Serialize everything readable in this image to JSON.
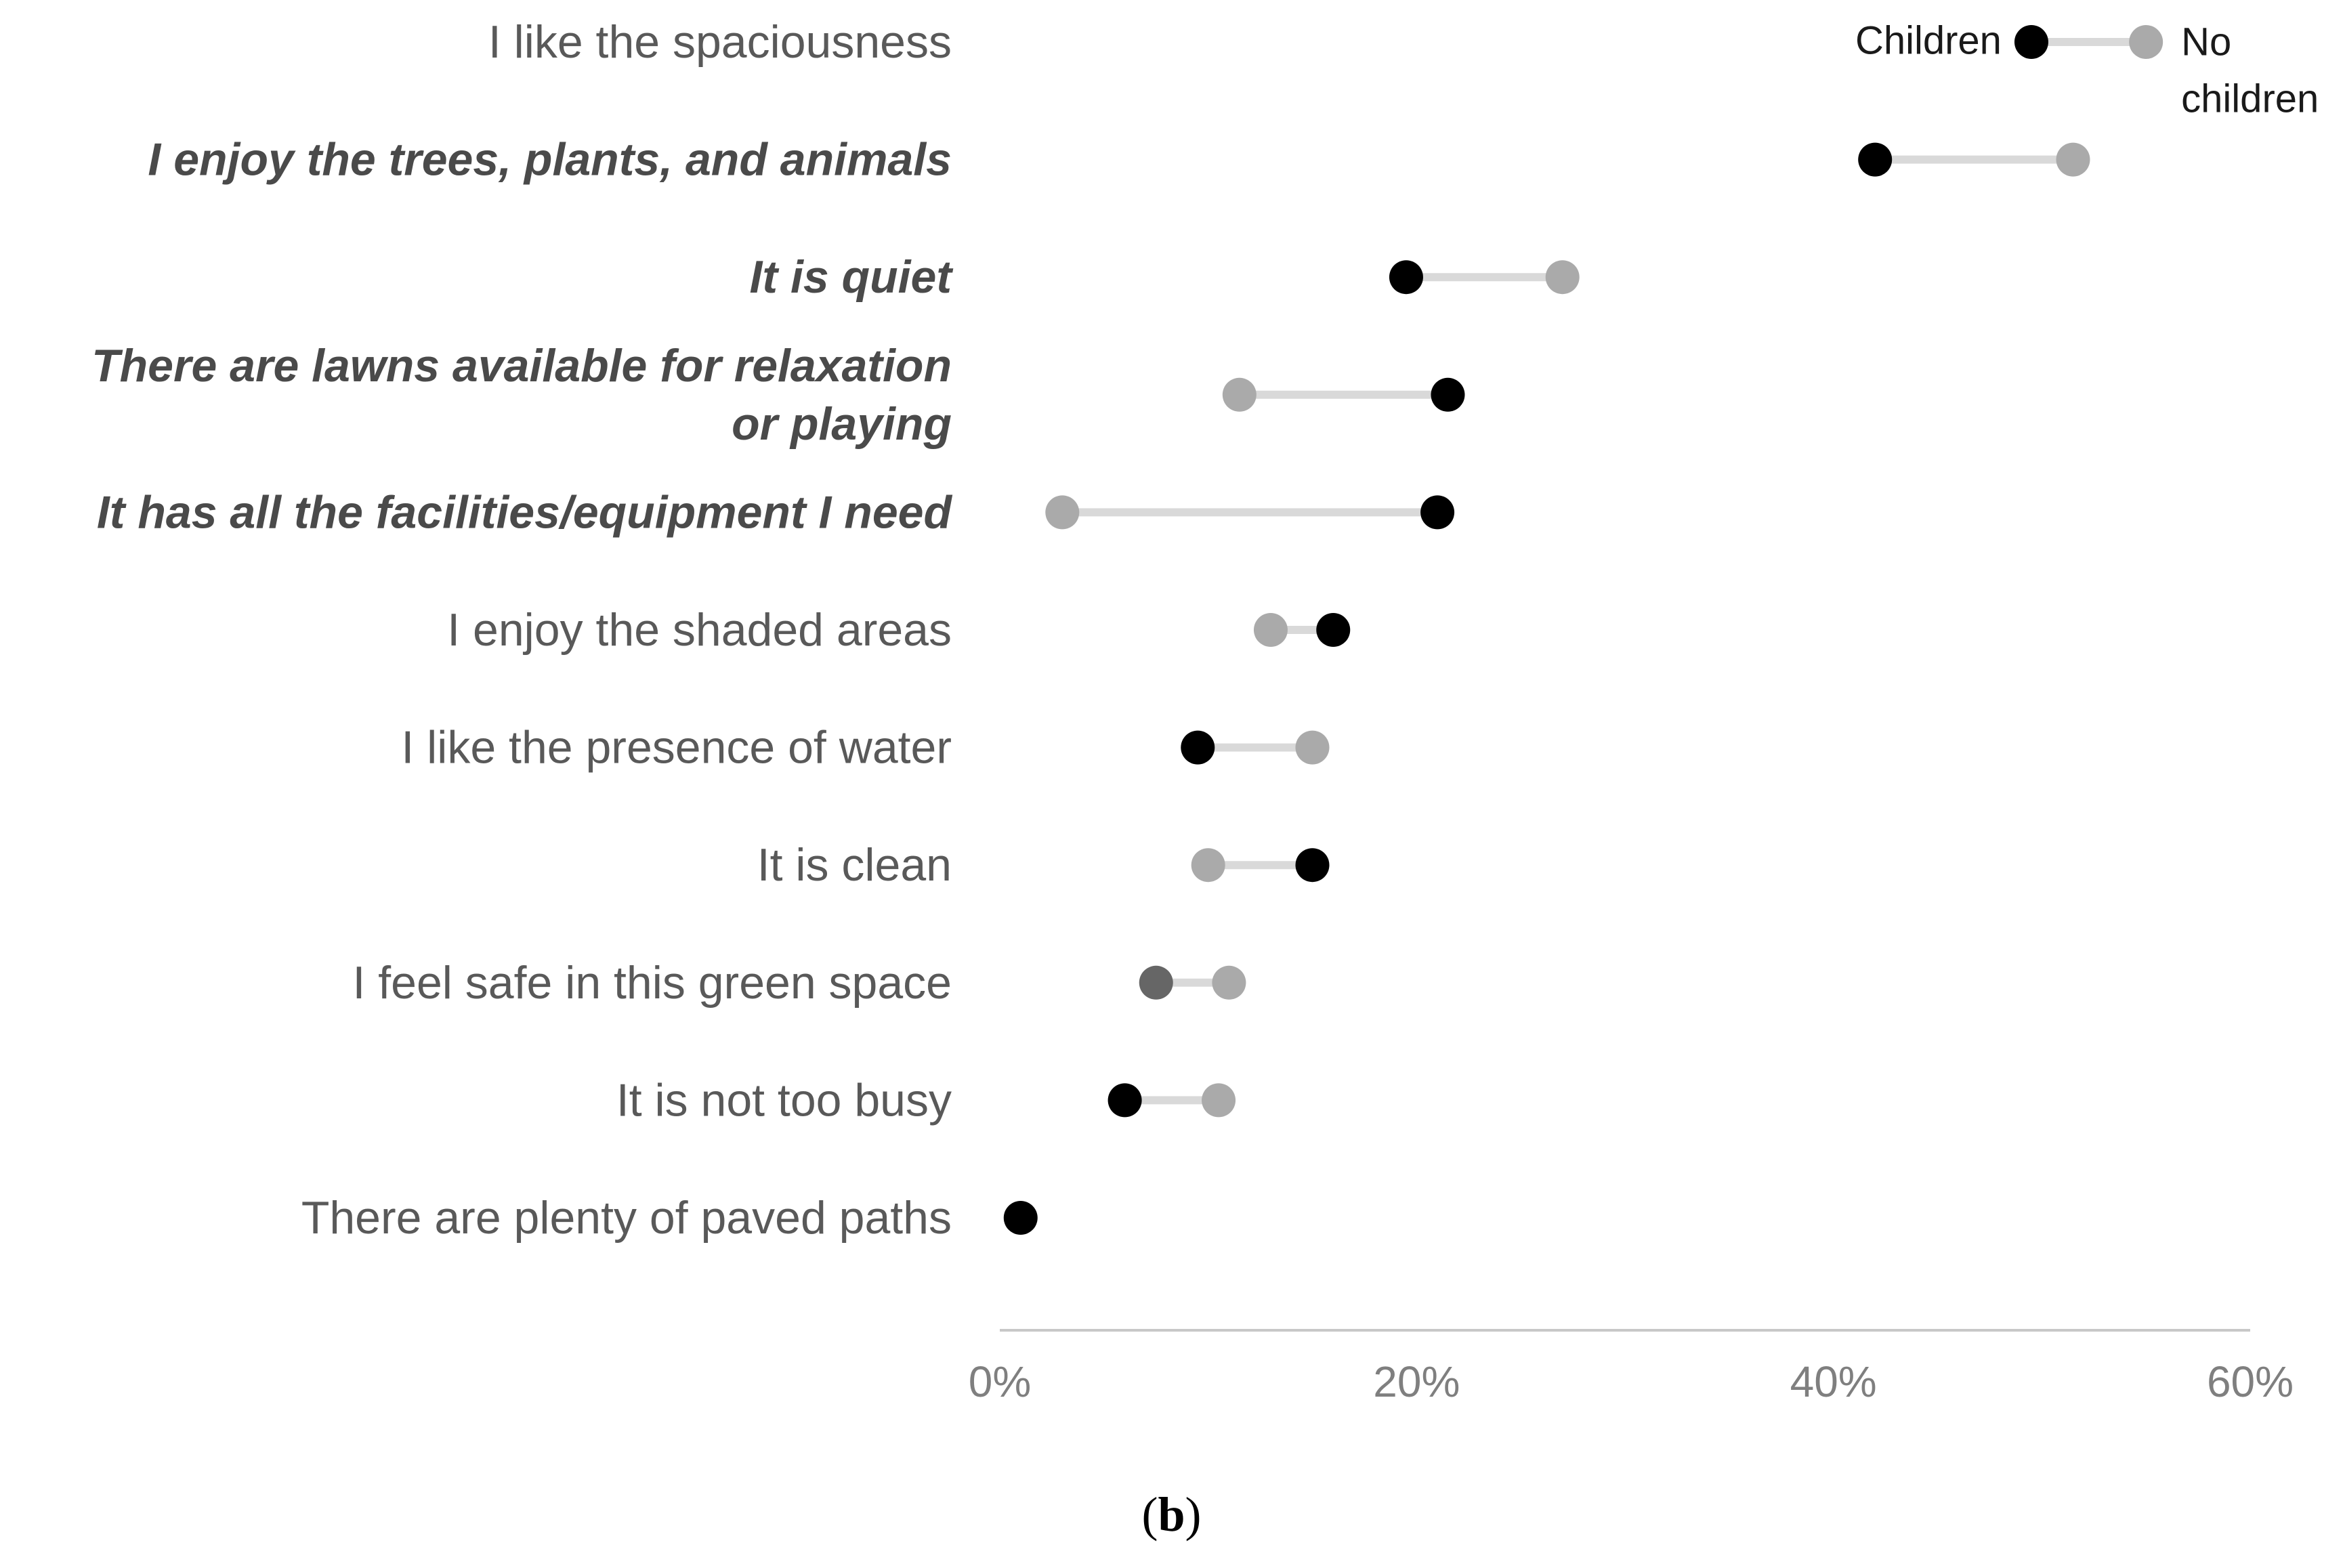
{
  "chart_data": {
    "type": "dumbbell",
    "categories": [
      "I like the spaciousness",
      "I enjoy the trees, plants, and animals",
      "It is quiet",
      "There are lawns available for relaxation or playing",
      "It has all the facilities/equipment I need",
      "I enjoy the shaded areas",
      "I like the presence of water",
      "It is clean",
      "I feel safe in this green space",
      "It is not too busy",
      "There are plenty of paved paths"
    ],
    "category_lines": [
      [
        "I like the spaciousness"
      ],
      [
        "I enjoy the trees, plants, and animals"
      ],
      [
        "It is quiet"
      ],
      [
        "There are lawns available for relaxation",
        "or playing"
      ],
      [
        "It has all the facilities/equipment I need"
      ],
      [
        "I enjoy the shaded areas"
      ],
      [
        "I like the presence of water"
      ],
      [
        "It is clean"
      ],
      [
        "I feel safe in this green space"
      ],
      [
        "It is not too busy"
      ],
      [
        "There are plenty of paved paths"
      ]
    ],
    "emphasized": [
      false,
      true,
      true,
      true,
      true,
      false,
      false,
      false,
      false,
      false,
      false
    ],
    "series": [
      {
        "name": "Children",
        "color": "#000000",
        "values": [
          49.5,
          42,
          19.5,
          21.5,
          21,
          16,
          9.5,
          15,
          7.5,
          6,
          1
        ]
      },
      {
        "name": "No children",
        "name_lines": [
          "No",
          "children"
        ],
        "color": "#aaaaaa",
        "values": [
          55,
          51.5,
          27,
          11.5,
          3,
          13,
          15,
          10,
          11,
          10.5,
          null
        ]
      }
    ],
    "point_colors_override": [
      {
        "category_index": 8,
        "series_index": 0,
        "color": "#666666"
      }
    ],
    "connector_color": "#d9d9d9",
    "xlim": [
      0,
      60
    ],
    "xticks": [
      0,
      20,
      40,
      60
    ],
    "xtick_labels": [
      "0%",
      "20%",
      "40%",
      "60%"
    ],
    "legend_position": "top-right",
    "grid": false
  },
  "panel_label": {
    "open": "(",
    "letter": "b",
    "close": ")"
  }
}
